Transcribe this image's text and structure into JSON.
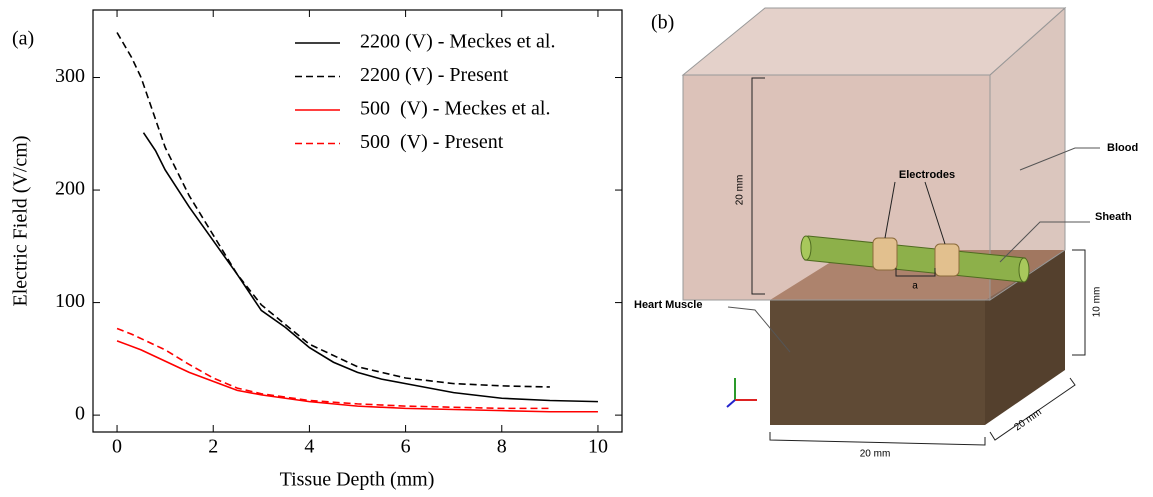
{
  "chart_data": {
    "type": "line",
    "panel_label": "(a)",
    "x_label": "Tissue Depth (mm)",
    "y_label": "Electric Field (V/cm)",
    "xlim": [
      -0.5,
      10.5
    ],
    "ylim": [
      -15,
      360
    ],
    "xticks": [
      0,
      2,
      4,
      6,
      8,
      10
    ],
    "yticks": [
      0,
      100,
      200,
      300
    ],
    "legend": "upper right",
    "series": [
      {
        "name": "2200 (V) - Meckes et al.",
        "color": "#000000",
        "dash": "solid",
        "x": [
          0.55,
          0.8,
          1,
          1.5,
          2,
          2.5,
          3,
          3.5,
          4,
          4.5,
          5,
          5.5,
          6,
          7,
          8,
          9,
          10
        ],
        "values": [
          251,
          235,
          218,
          185,
          155,
          125,
          93,
          78,
          60,
          47,
          38,
          32,
          28,
          20,
          15,
          13,
          12
        ]
      },
      {
        "name": "2200 (V) - Present",
        "color": "#000000",
        "dash": "dashed",
        "x": [
          0,
          0.3,
          0.5,
          1,
          1.5,
          2,
          2.5,
          3,
          4,
          5,
          6,
          7,
          8,
          9
        ],
        "values": [
          340,
          318,
          300,
          238,
          195,
          160,
          125,
          98,
          63,
          43,
          33,
          28,
          26,
          25
        ]
      },
      {
        "name": "500  (V) - Meckes et al.",
        "color": "#ff0000",
        "dash": "solid",
        "x": [
          0,
          0.5,
          1,
          1.5,
          2,
          2.5,
          3,
          4,
          5,
          6,
          7,
          8,
          9,
          10
        ],
        "values": [
          66,
          58,
          48,
          38,
          30,
          22,
          18,
          12,
          8,
          6,
          5,
          4,
          3,
          3
        ]
      },
      {
        "name": "500  (V) - Present",
        "color": "#ff0000",
        "dash": "dashed",
        "x": [
          0,
          0.3,
          1,
          1.5,
          2,
          2.5,
          3,
          4,
          5,
          6,
          7,
          8,
          9
        ],
        "values": [
          77,
          72,
          58,
          45,
          33,
          24,
          19,
          13,
          10,
          8,
          7,
          6,
          6
        ]
      }
    ]
  },
  "diagram": {
    "panel_label": "(b)",
    "blood": "Blood",
    "sheath": "Sheath",
    "electrodes": "Electrodes",
    "heart_muscle": "Heart Muscle",
    "height_blood": "20 mm",
    "height_muscle": "10 mm",
    "width": "20 mm",
    "depth": "20 mm",
    "gap": "a"
  }
}
